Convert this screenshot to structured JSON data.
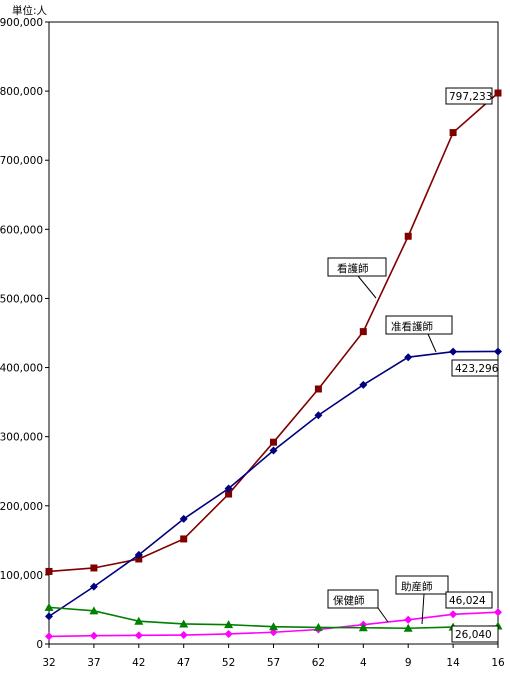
{
  "chart_data": {
    "type": "line",
    "unit_label": "単位:人",
    "categories": [
      "32",
      "37",
      "42",
      "47",
      "52",
      "57",
      "62",
      "4",
      "9",
      "14",
      "16"
    ],
    "ylim": [
      0,
      900000
    ],
    "yticks": [
      "0",
      "100,000",
      "200,000",
      "300,000",
      "400,000",
      "500,000",
      "600,000",
      "700,000",
      "800,000",
      "900,000"
    ],
    "grid": false,
    "series": [
      {
        "name": "看護師",
        "color": "#800000",
        "marker": "square",
        "values": [
          105000,
          110000,
          123000,
          152000,
          217000,
          292000,
          369000,
          452000,
          590000,
          740000,
          797233
        ]
      },
      {
        "name": "准看護師",
        "color": "#000080",
        "marker": "diamond",
        "values": [
          40000,
          83000,
          129000,
          181000,
          225000,
          280000,
          331000,
          375000,
          415000,
          423000,
          423296
        ]
      },
      {
        "name": "保健師",
        "color": "#ff00ff",
        "marker": "diamond",
        "values": [
          11000,
          12000,
          12500,
          13000,
          14500,
          17000,
          21000,
          28000,
          35000,
          43000,
          46024
        ]
      },
      {
        "name": "助産師",
        "color": "#008000",
        "marker": "triangle",
        "values": [
          53000,
          48000,
          33000,
          29000,
          28000,
          25000,
          24000,
          23500,
          22800,
          24500,
          26040
        ]
      }
    ],
    "annotations": [
      "797,233",
      "423,296",
      "46,024",
      "26,040"
    ]
  }
}
